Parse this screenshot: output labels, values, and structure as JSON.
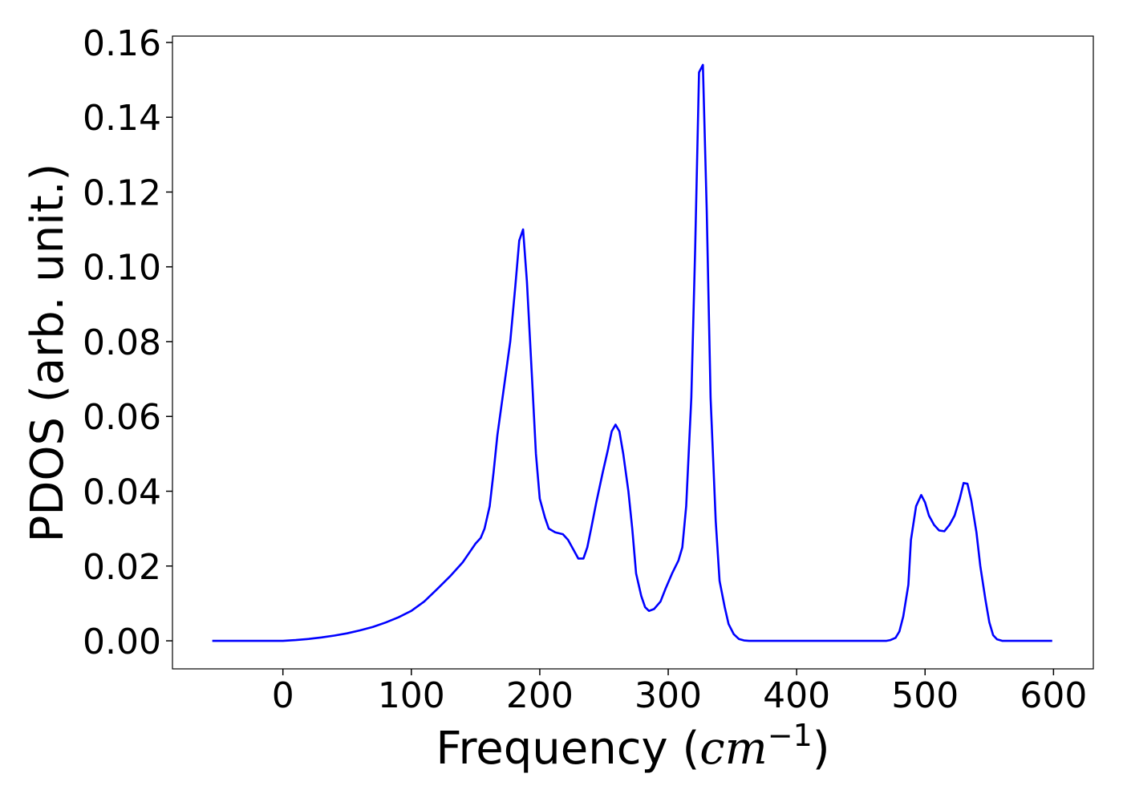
{
  "chart_data": {
    "type": "line",
    "xlabel": [
      "Frequency (",
      "cm",
      "−1",
      ")"
    ],
    "ylabel": "PDOS (arb. unit.)",
    "xlim": [
      -86,
      631
    ],
    "ylim": [
      -0.0075,
      0.1617
    ],
    "xticks": [
      0,
      100,
      200,
      300,
      400,
      500,
      600
    ],
    "yticks": [
      {
        "value": 0,
        "label": "0.00"
      },
      {
        "value": 0.02,
        "label": "0.02"
      },
      {
        "value": 0.04,
        "label": "0.04"
      },
      {
        "value": 0.06,
        "label": "0.06"
      },
      {
        "value": 0.08,
        "label": "0.08"
      },
      {
        "value": 0.1,
        "label": "0.10"
      },
      {
        "value": 0.12,
        "label": "0.12"
      },
      {
        "value": 0.14,
        "label": "0.14"
      },
      {
        "value": 0.16,
        "label": "0.16"
      }
    ],
    "x": [
      -55,
      0,
      10,
      20,
      30,
      40,
      50,
      60,
      70,
      80,
      90,
      100,
      110,
      120,
      130,
      140,
      145,
      150,
      154,
      157,
      161,
      164,
      167,
      171,
      177,
      181,
      184,
      187,
      190,
      194,
      197,
      200,
      204,
      207,
      212,
      218,
      222,
      226,
      230,
      234,
      237,
      240,
      244,
      249,
      253,
      256,
      259,
      262,
      265,
      269,
      272,
      275,
      279,
      282,
      285,
      289,
      294,
      298,
      303,
      308,
      311,
      314,
      318,
      321,
      324,
      327,
      330,
      333,
      337,
      340,
      344,
      347,
      351,
      355,
      359,
      363,
      470,
      473,
      477,
      480,
      483,
      487,
      489,
      493,
      497,
      500,
      503,
      507,
      511,
      515,
      519,
      523,
      527,
      530,
      533,
      536,
      540,
      543,
      547,
      550,
      553,
      556,
      560,
      599
    ],
    "series": [
      {
        "color": "#0000ff",
        "values": [
          0,
          0,
          0.0002,
          0.0005,
          0.0009,
          0.0014,
          0.002,
          0.0028,
          0.0037,
          0.0049,
          0.0063,
          0.008,
          0.0105,
          0.0138,
          0.0172,
          0.021,
          0.0235,
          0.026,
          0.0275,
          0.03,
          0.036,
          0.045,
          0.055,
          0.065,
          0.08,
          0.095,
          0.107,
          0.11,
          0.096,
          0.07,
          0.05,
          0.038,
          0.033,
          0.03,
          0.029,
          0.0285,
          0.027,
          0.0245,
          0.022,
          0.022,
          0.025,
          0.03,
          0.037,
          0.045,
          0.051,
          0.056,
          0.0578,
          0.056,
          0.05,
          0.04,
          0.03,
          0.018,
          0.012,
          0.009,
          0.008,
          0.0085,
          0.0105,
          0.014,
          0.018,
          0.0215,
          0.025,
          0.036,
          0.065,
          0.105,
          0.152,
          0.154,
          0.115,
          0.065,
          0.032,
          0.016,
          0.009,
          0.0045,
          0.0018,
          0.0005,
          0.0001,
          0,
          0,
          0.0002,
          0.0008,
          0.0025,
          0.0065,
          0.015,
          0.027,
          0.036,
          0.039,
          0.037,
          0.0335,
          0.031,
          0.0295,
          0.0293,
          0.031,
          0.0335,
          0.038,
          0.0422,
          0.042,
          0.0375,
          0.029,
          0.02,
          0.011,
          0.005,
          0.0015,
          0.0004,
          0,
          0
        ]
      }
    ]
  }
}
